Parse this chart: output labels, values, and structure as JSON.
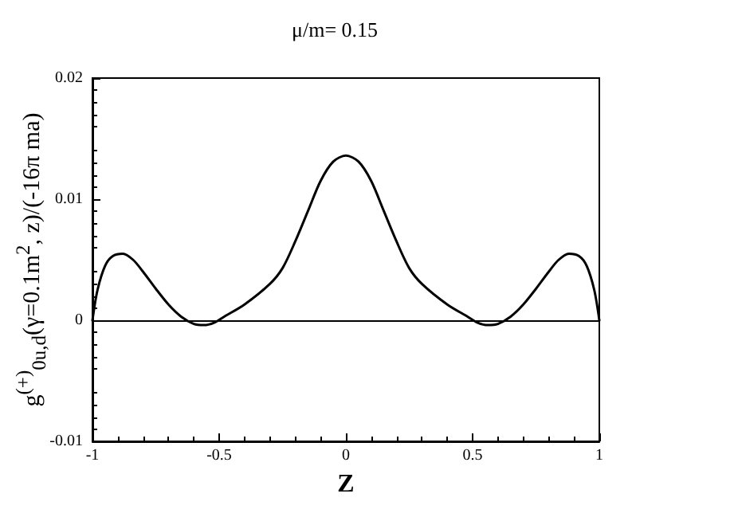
{
  "chart_data": {
    "type": "line",
    "title": "μ/m= 0.15",
    "xlabel": "Z",
    "ylabel": "g$^{(+)}$$_{0u,d}$(γ=0.1m$^{2}$, z)/(-16π ma)",
    "xlim": [
      -1,
      1
    ],
    "xticks": [
      -1,
      -0.5,
      0,
      0.5,
      1
    ],
    "ylim": [
      -0.01,
      0.02
    ],
    "yticks": [
      -0.01,
      0,
      0.01,
      0.02
    ],
    "grid": false,
    "marker": "none",
    "line_style": "solid",
    "ref_lines": [
      {
        "axis": "y",
        "value": 0,
        "color": "#000000"
      }
    ],
    "series": [
      {
        "color": "#000000",
        "x": [
          -1,
          -0.98,
          -0.95,
          -0.92,
          -0.88,
          -0.84,
          -0.8,
          -0.75,
          -0.7,
          -0.65,
          -0.6,
          -0.56,
          -0.52,
          -0.48,
          -0.4,
          -0.3,
          -0.25,
          -0.2,
          -0.15,
          -0.1,
          -0.05,
          0,
          0.05,
          0.1,
          0.15,
          0.2,
          0.25,
          0.3,
          0.4,
          0.48,
          0.52,
          0.56,
          0.6,
          0.65,
          0.7,
          0.75,
          0.8,
          0.84,
          0.88,
          0.92,
          0.95,
          0.98,
          1
        ],
        "values": [
          0,
          0.0025,
          0.0045,
          0.0053,
          0.0055,
          0.005,
          0.004,
          0.0026,
          0.0013,
          0.0003,
          -0.0003,
          -0.0004,
          -0.0002,
          0.0003,
          0.0013,
          0.003,
          0.0043,
          0.0065,
          0.009,
          0.0115,
          0.0131,
          0.0136,
          0.0131,
          0.0115,
          0.009,
          0.0065,
          0.0043,
          0.003,
          0.0013,
          0.0003,
          -0.0002,
          -0.0004,
          -0.0003,
          0.0003,
          0.0013,
          0.0026,
          0.004,
          0.005,
          0.0055,
          0.0053,
          0.0045,
          0.0025,
          0
        ]
      }
    ]
  }
}
